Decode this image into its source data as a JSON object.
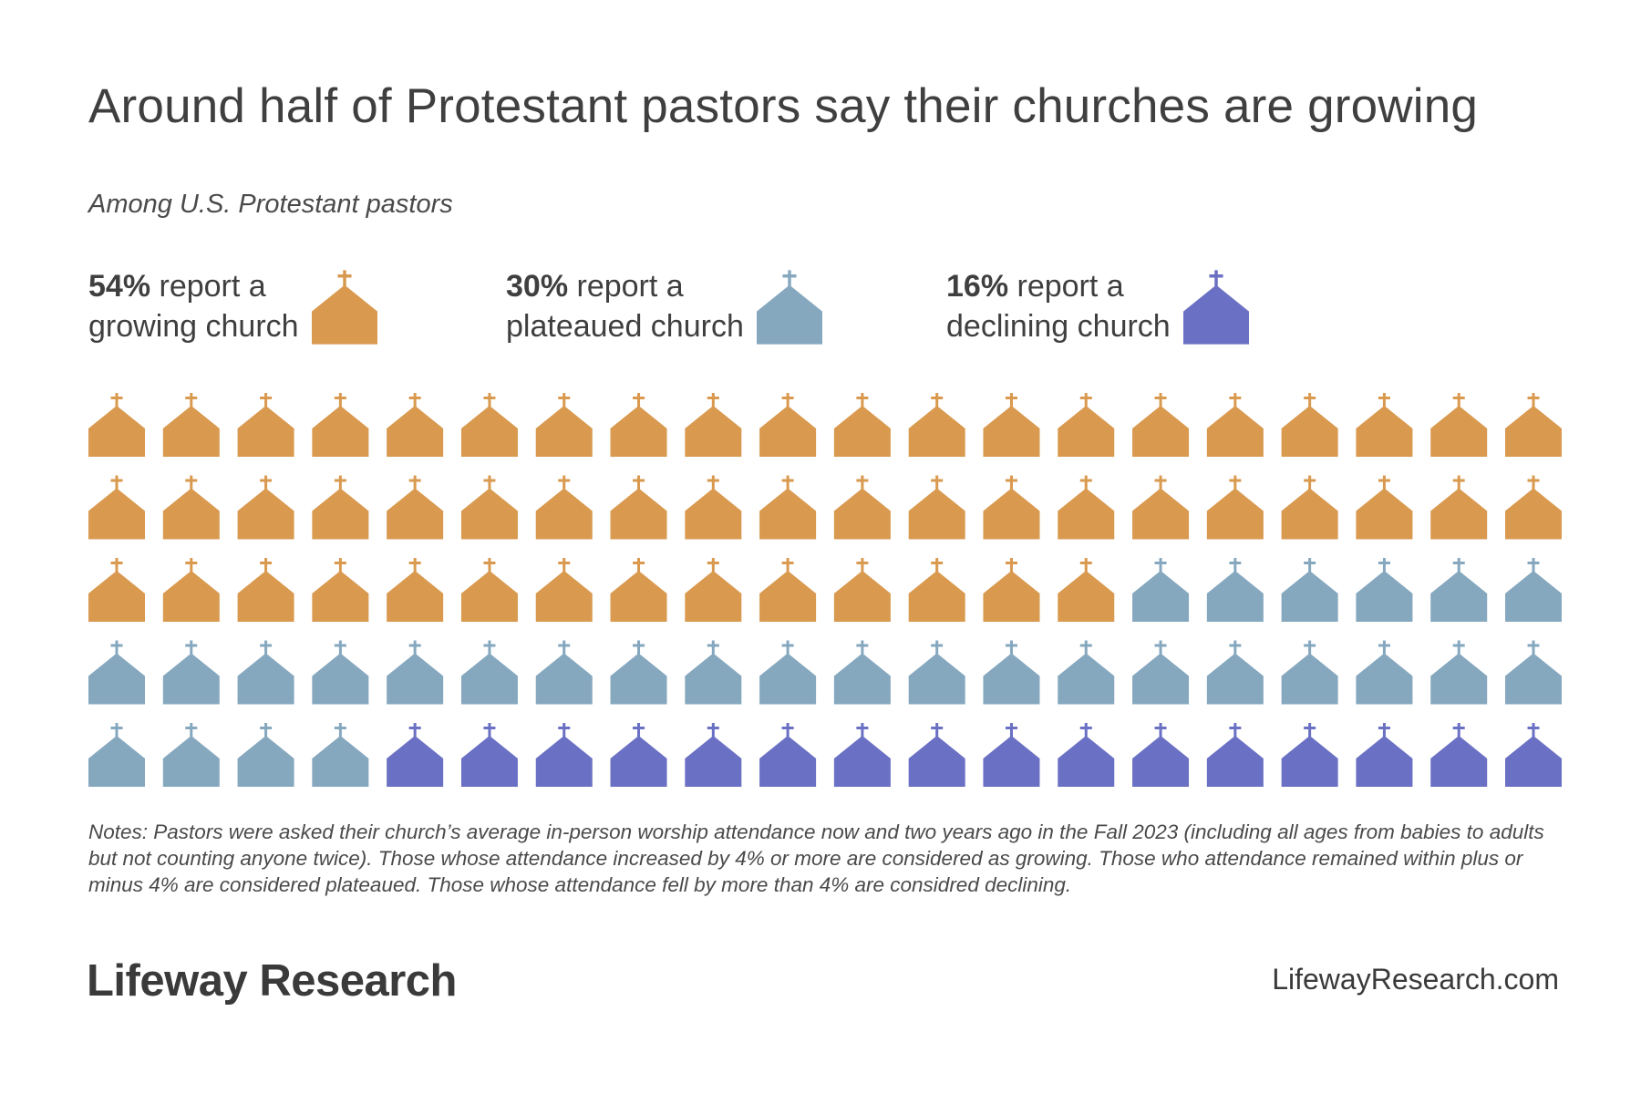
{
  "title": "Around half of Protestant pastors say their churches are growing",
  "subtitle": "Among U.S. Protestant pastors",
  "legend": [
    {
      "pct": "54%",
      "line1": " report a",
      "line2": "growing church",
      "color": "#d9994f"
    },
    {
      "pct": "30%",
      "line1": " report a",
      "line2": "plateaued church",
      "color": "#86a8bf"
    },
    {
      "pct": "16%",
      "line1": " report a",
      "line2": "declining church",
      "color": "#6a70c3"
    }
  ],
  "chart_data": {
    "type": "waffle",
    "total_icons": 100,
    "columns": 20,
    "rows": 5,
    "categories": [
      "growing church",
      "plateaued church",
      "declining church"
    ],
    "values": [
      54,
      30,
      16
    ],
    "unit": "%",
    "colors": [
      "#d9994f",
      "#86a8bf",
      "#6a70c3"
    ],
    "icon": "church-icon"
  },
  "notes": "Notes:  Pastors were asked their church’s average in-person worship attendance now and two years ago in the Fall 2023 (including all ages from babies to adults but not counting anyone twice). Those whose attendance increased by 4% or more are considered as growing. Those who attendance remained within plus or minus 4% are considered plateaued. Those whose attendance fell by more than 4% are considred declining.",
  "footer": {
    "brand": "Lifeway Research",
    "url": "LifewayResearch.com"
  }
}
